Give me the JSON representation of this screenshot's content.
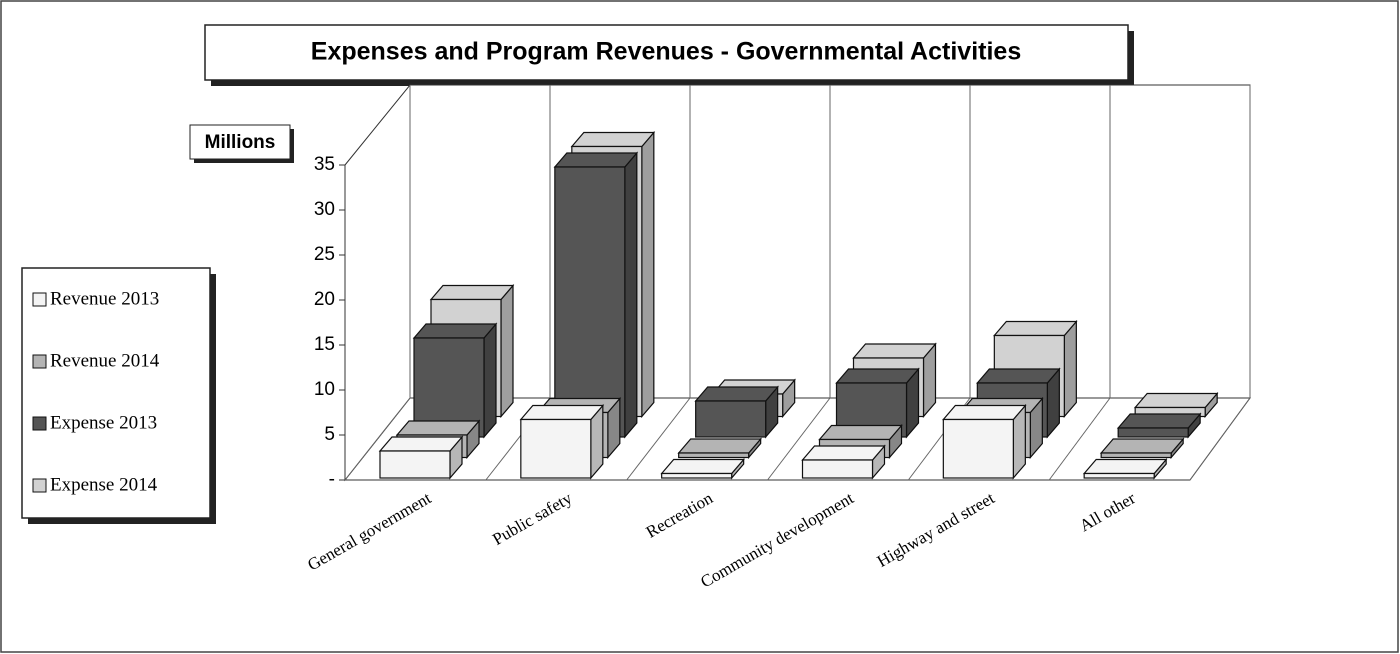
{
  "chart_data": {
    "type": "bar3d",
    "title": "Expenses and Program Revenues - Governmental Activities",
    "ylabel": "Millions",
    "categories": [
      "General government",
      "Public safety",
      "Recreation",
      "Community development",
      "Highway and street",
      "All other"
    ],
    "series": [
      {
        "name": "Revenue 2013",
        "color": "#f4f4f4",
        "values": [
          3,
          6.5,
          0.5,
          2,
          6.5,
          0.5
        ]
      },
      {
        "name": "Revenue 2014",
        "color": "#b4b4b4",
        "values": [
          2.5,
          5,
          0.5,
          2,
          5,
          0.5
        ]
      },
      {
        "name": "Expense 2013",
        "color": "#555555",
        "values": [
          11,
          30,
          4,
          6,
          6,
          1
        ]
      },
      {
        "name": "Expense 2014",
        "color": "#d2d2d2",
        "values": [
          13,
          30,
          2.5,
          6.5,
          9,
          1
        ]
      }
    ],
    "ylim": [
      0,
      35
    ],
    "yticks": [
      {
        "value": 0,
        "label": "-"
      },
      5,
      10,
      15,
      20,
      25,
      30,
      35
    ],
    "legend": "left"
  }
}
